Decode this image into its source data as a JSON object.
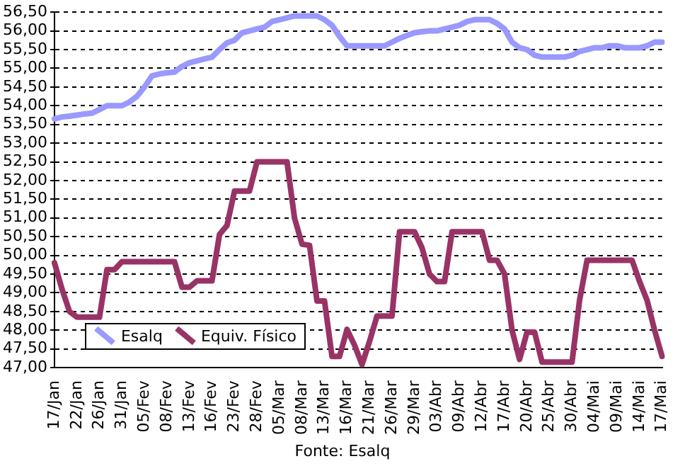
{
  "chart_data": {
    "type": "line",
    "categories": [
      "17/Jan",
      null,
      null,
      "22/Jan",
      null,
      null,
      "26/Jan",
      null,
      null,
      "31/Jan",
      null,
      null,
      "05/Fev",
      null,
      null,
      "08/Fev",
      null,
      null,
      "13/Fev",
      null,
      null,
      "16/Fev",
      null,
      null,
      "23/Fev",
      null,
      null,
      "28/Fev",
      null,
      null,
      "05/Mar",
      null,
      null,
      "08/Mar",
      null,
      null,
      "13/Mar",
      null,
      null,
      "16/Mar",
      null,
      null,
      "21/Mar",
      null,
      null,
      "26/Mar",
      null,
      null,
      "29/Mar",
      null,
      null,
      "03/Abr",
      null,
      null,
      "09/Abr",
      null,
      null,
      "12/Abr",
      null,
      null,
      "17/Abr",
      null,
      null,
      "20/Abr",
      null,
      null,
      "25/Abr",
      null,
      null,
      "30/Abr",
      null,
      null,
      "04/Mai",
      null,
      null,
      "09/Mai",
      null,
      null,
      "14/Mai",
      null,
      null,
      "17/Mai"
    ],
    "series": [
      {
        "name": "Esalq",
        "color": "#9999ff",
        "values": [
          53.65,
          53.7,
          53.72,
          53.75,
          53.78,
          53.8,
          53.9,
          54.0,
          54.0,
          54.0,
          54.1,
          54.25,
          54.5,
          54.8,
          54.85,
          54.88,
          54.9,
          55.05,
          55.15,
          55.2,
          55.25,
          55.3,
          55.5,
          55.68,
          55.75,
          55.95,
          56.0,
          56.05,
          56.1,
          56.25,
          56.3,
          56.35,
          56.4,
          56.4,
          56.4,
          56.4,
          56.3,
          56.15,
          55.85,
          55.6,
          55.6,
          55.6,
          55.6,
          55.6,
          55.6,
          55.7,
          55.8,
          55.88,
          55.95,
          55.98,
          56.0,
          56.0,
          56.05,
          56.1,
          56.15,
          56.25,
          56.3,
          56.3,
          56.3,
          56.2,
          56.05,
          55.7,
          55.55,
          55.5,
          55.35,
          55.3,
          55.3,
          55.3,
          55.3,
          55.35,
          55.45,
          55.5,
          55.55,
          55.55,
          55.6,
          55.6,
          55.55,
          55.55,
          55.55,
          55.6,
          55.7,
          55.7
        ]
      },
      {
        "name": "Equiv. Físico",
        "color": "#993366",
        "values": [
          49.8,
          49.1,
          48.5,
          48.35,
          48.35,
          48.35,
          48.35,
          49.62,
          49.62,
          49.83,
          49.83,
          49.83,
          49.83,
          49.83,
          49.83,
          49.83,
          49.83,
          49.15,
          49.15,
          49.32,
          49.32,
          49.32,
          50.56,
          50.8,
          51.72,
          51.72,
          51.72,
          52.5,
          52.5,
          52.5,
          52.5,
          52.5,
          51.0,
          50.3,
          50.27,
          48.78,
          48.78,
          47.3,
          47.3,
          48.02,
          47.6,
          47.08,
          47.7,
          48.38,
          48.38,
          48.38,
          50.63,
          50.63,
          50.63,
          50.2,
          49.5,
          49.3,
          49.3,
          50.63,
          50.63,
          50.63,
          50.63,
          50.63,
          49.87,
          49.87,
          49.5,
          48.0,
          47.22,
          47.95,
          47.95,
          47.15,
          47.15,
          47.15,
          47.15,
          47.15,
          48.8,
          49.87,
          49.87,
          49.87,
          49.87,
          49.87,
          49.87,
          49.87,
          49.3,
          48.8,
          48.0,
          47.3
        ]
      }
    ],
    "ylim": [
      47,
      56.5
    ],
    "yticks": [
      {
        "value": 47,
        "label": "47,00"
      },
      {
        "value": 47.5,
        "label": "47,50"
      },
      {
        "value": 48,
        "label": "48,00"
      },
      {
        "value": 48.5,
        "label": "48,50"
      },
      {
        "value": 49,
        "label": "49,00"
      },
      {
        "value": 49.5,
        "label": "49,50"
      },
      {
        "value": 50,
        "label": "50,00"
      },
      {
        "value": 50.5,
        "label": "50,50"
      },
      {
        "value": 51,
        "label": "51,00"
      },
      {
        "value": 51.5,
        "label": "51,50"
      },
      {
        "value": 52,
        "label": "52,00"
      },
      {
        "value": 52.5,
        "label": "52,50"
      },
      {
        "value": 53,
        "label": "53,00"
      },
      {
        "value": 53.5,
        "label": "53,50"
      },
      {
        "value": 54,
        "label": "54,00"
      },
      {
        "value": 54.5,
        "label": "54,50"
      },
      {
        "value": 55,
        "label": "55,00"
      },
      {
        "value": 55.5,
        "label": "55,50"
      },
      {
        "value": 56,
        "label": "56,00"
      },
      {
        "value": 56.5,
        "label": "56,50"
      }
    ],
    "grid": "y",
    "legend": "bottom left",
    "marker": "none",
    "line_style": "solid",
    "annotations": [
      "Fonte: Esalq"
    ]
  }
}
